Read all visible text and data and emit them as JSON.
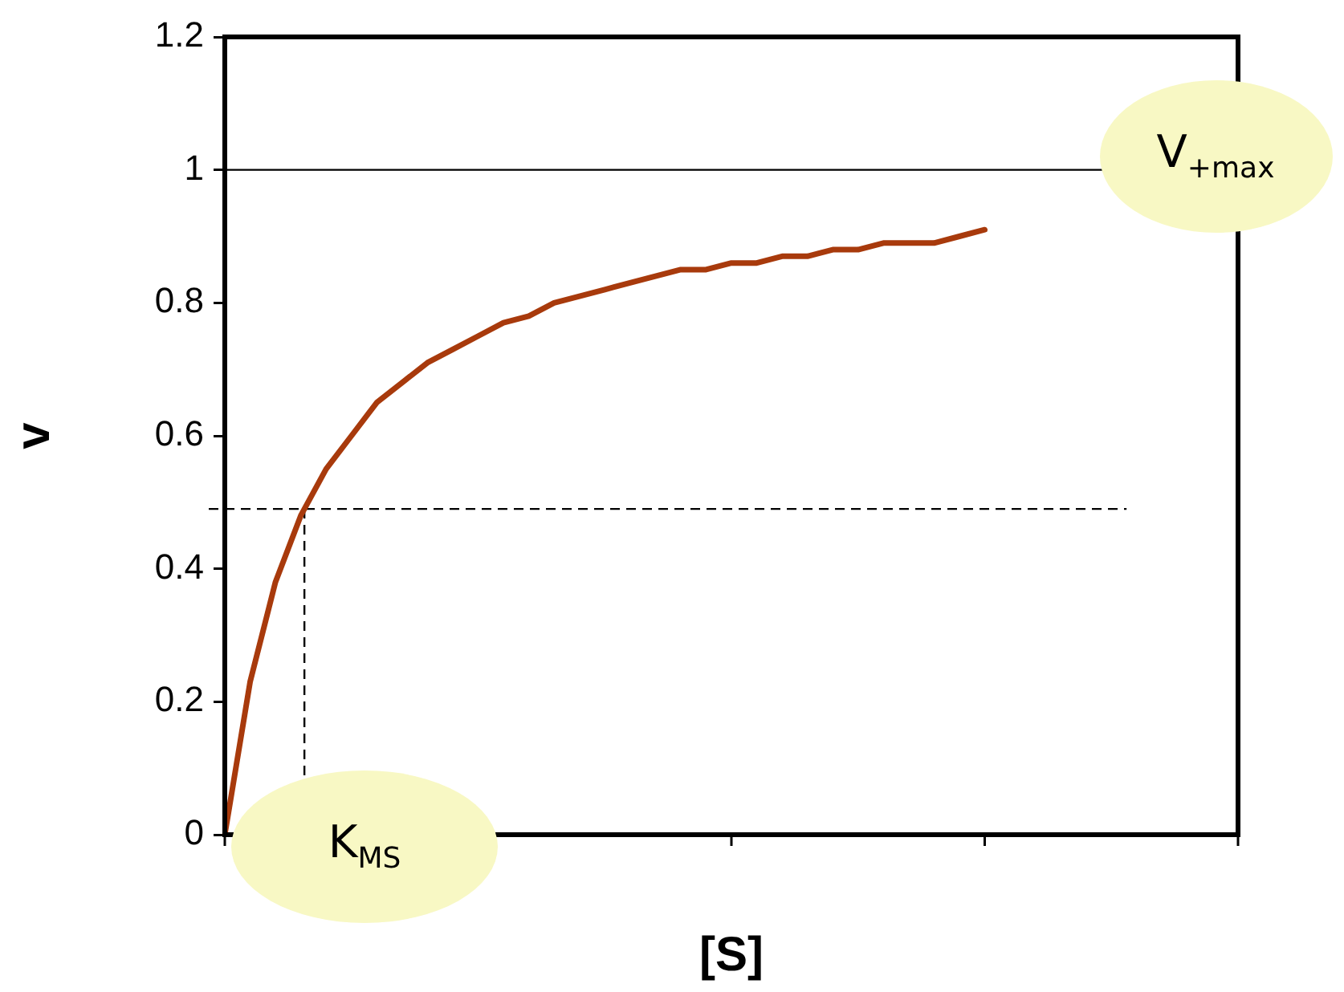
{
  "chart_data": {
    "type": "line",
    "xlabel": "[S]",
    "ylabel": "v",
    "categories": [
      null,
      null,
      null,
      null,
      null,
      null,
      null,
      null,
      null,
      null,
      null,
      null,
      null,
      null,
      null,
      null,
      null,
      null,
      null,
      null,
      null,
      null,
      null,
      null,
      null,
      null,
      null,
      null,
      null,
      null,
      null,
      null,
      null,
      null,
      null,
      null,
      null,
      null,
      null,
      null,
      null
    ],
    "series": [
      {
        "color": "#a83a0c",
        "values": [
          0,
          0.23,
          0.38,
          0.48,
          0.55,
          0.6,
          0.65,
          0.68,
          0.71,
          0.73,
          0.75,
          0.77,
          0.78,
          0.8,
          0.81,
          0.82,
          0.83,
          0.84,
          0.85,
          0.85,
          0.86,
          0.86,
          0.87,
          0.87,
          0.88,
          0.88,
          0.89,
          0.89,
          0.89,
          0.9,
          0.91,
          null,
          null,
          null,
          null,
          null,
          null,
          null,
          null,
          null,
          null
        ]
      }
    ],
    "ylim": [
      0,
      1.2
    ],
    "yticks": [
      0,
      0.2,
      0.4,
      0.6,
      0.8,
      1,
      1.2
    ],
    "ref_lines": [
      {
        "axis": "y",
        "value": 1,
        "color": "#000000",
        "line_style": "solid"
      },
      {
        "axis": "y",
        "value": 0.49,
        "color": "#000000",
        "line_style": "dashed"
      }
    ],
    "annotations": [
      "V$_{+max}$",
      "K$_{MS}$"
    ],
    "grid": false,
    "legend": false,
    "marker": "none",
    "line_style": "solid",
    "tick_labels": "y"
  }
}
